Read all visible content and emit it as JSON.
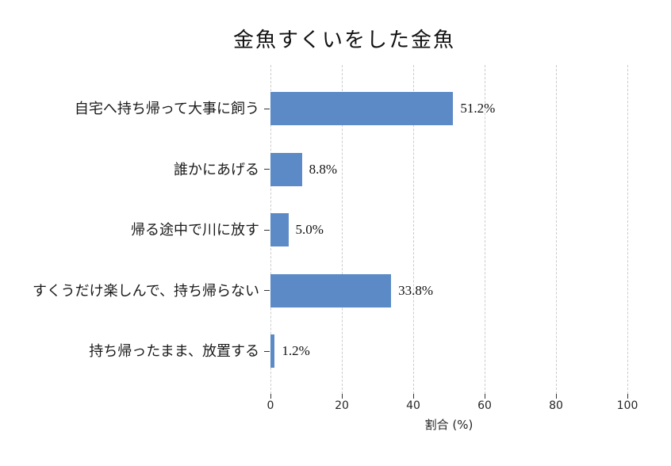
{
  "figure": {
    "background": "#ffffff"
  },
  "chart_data": {
    "type": "bar",
    "orientation": "horizontal",
    "title": "金魚すくいをした金魚",
    "categories": [
      "自宅へ持ち帰って大事に飼う",
      "誰かにあげる",
      "帰る途中で川に放す",
      "すくうだけ楽しんで、持ち帰らない",
      "持ち帰ったまま、放置する"
    ],
    "values": [
      51.2,
      8.8,
      5.0,
      33.8,
      1.2
    ],
    "value_labels": [
      "51.2%",
      "8.8%",
      "5.0%",
      "33.8%",
      "1.2%"
    ],
    "xlabel": "割合 (%)",
    "xlim": [
      0,
      100
    ],
    "xticks": [
      0,
      20,
      40,
      60,
      80,
      100
    ],
    "grid": {
      "axis": "x",
      "style": "dashed",
      "color": "#cccccc"
    },
    "legend": "none",
    "bar_color": "#5b8ac6",
    "tick_color": "#333333",
    "text_color": "#1a1a1a"
  }
}
